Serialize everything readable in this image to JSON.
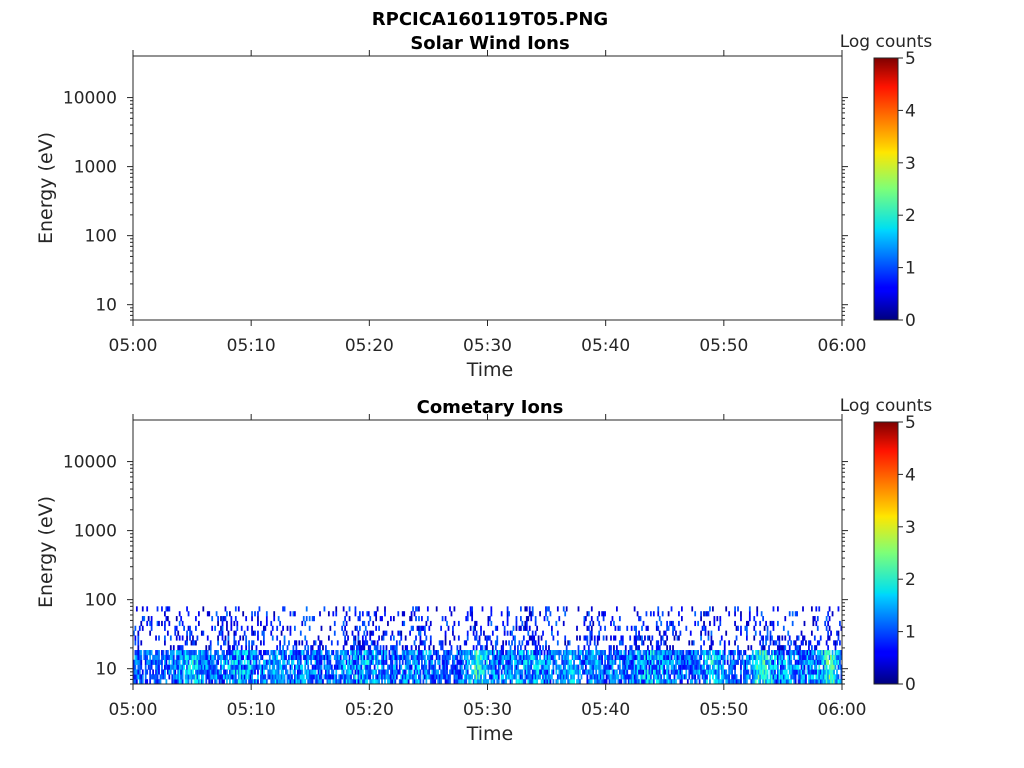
{
  "figure_title": "RPCICA160119T05.PNG",
  "chart_data": [
    {
      "type": "heatmap",
      "title": "Solar Wind Ions",
      "xlabel": "Time",
      "ylabel": "Energy (eV)",
      "x_range": [
        "05:00",
        "06:00"
      ],
      "x_ticks": [
        "05:00",
        "05:10",
        "05:20",
        "05:30",
        "05:40",
        "05:50",
        "06:00"
      ],
      "y_scale": "log",
      "y_range": [
        6,
        40000
      ],
      "y_ticks": [
        10,
        100,
        1000,
        10000
      ],
      "y_tick_labels": [
        "10",
        "100",
        "1000",
        "10000"
      ],
      "colorbar": {
        "label": "Log counts",
        "range": [
          0,
          5
        ],
        "ticks": [
          "0",
          "1",
          "2",
          "3",
          "4",
          "5"
        ],
        "colormap": "jet"
      },
      "data": "empty"
    },
    {
      "type": "heatmap",
      "title": "Cometary Ions",
      "xlabel": "Time",
      "ylabel": "Energy (eV)",
      "x_range": [
        "05:00",
        "06:00"
      ],
      "x_ticks": [
        "05:00",
        "05:10",
        "05:20",
        "05:30",
        "05:40",
        "05:50",
        "06:00"
      ],
      "y_scale": "log",
      "y_range": [
        6,
        40000
      ],
      "y_ticks": [
        10,
        100,
        1000,
        10000
      ],
      "y_tick_labels": [
        "10",
        "100",
        "1000",
        "10000"
      ],
      "colorbar": {
        "label": "Log counts",
        "range": [
          0,
          5
        ],
        "ticks": [
          "0",
          "1",
          "2",
          "3",
          "4",
          "5"
        ],
        "colormap": "jet"
      },
      "energy_extent_eV": [
        6,
        80
      ],
      "typical_log_counts": {
        "low_energy_band_6_to_20_eV": [
          0.5,
          2.2
        ],
        "upper_band_20_to_80_eV": [
          0.2,
          1.2
        ]
      },
      "notable_peaks": [
        {
          "time": "05:05",
          "log_counts": 2.0
        },
        {
          "time": "05:12",
          "log_counts": 1.9
        },
        {
          "time": "05:29",
          "log_counts": 2.2
        },
        {
          "time": "05:37",
          "log_counts": 2.1
        },
        {
          "time": "05:49",
          "log_counts": 2.0
        },
        {
          "time": "05:53",
          "log_counts": 2.3
        },
        {
          "time": "05:59",
          "log_counts": 2.4
        }
      ]
    }
  ]
}
